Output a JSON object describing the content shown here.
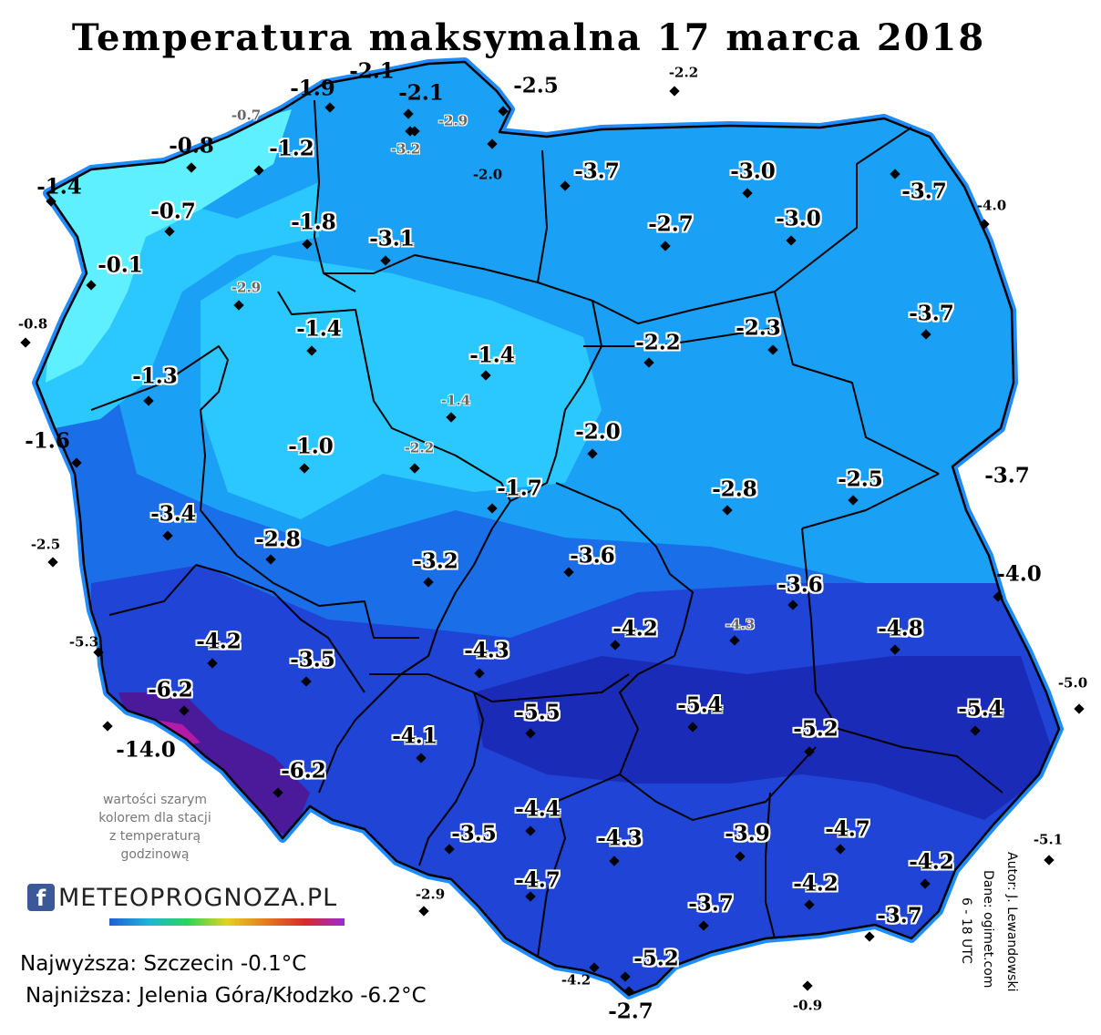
{
  "title": "Temperatura maksymalna 17 marca 2018",
  "note_lines": [
    "wartości szarym",
    "kolorem dla stacji",
    "z temperaturą",
    "godzinową"
  ],
  "logo": {
    "icon": "facebook-icon",
    "text": "METEOPROGNOZA.PL"
  },
  "stats": {
    "max": "Najwyższa: Szczecin -0.1°C",
    "min": "Najniższa: Jelenia Góra/Kłodzko -6.2°C"
  },
  "credits": {
    "author": "Autor: J. Lewandowski",
    "source": "Dane: ogimet.com",
    "hours": "6 - 18 UTC"
  },
  "colors": {
    "outline": "#000000",
    "border_glow": "#1f8cff",
    "warmest": "#5ef0ff",
    "warm": "#2bc8ff",
    "mild": "#1aa0f5",
    "cool": "#1a6fe8",
    "cold": "#1f44d6",
    "colder": "#1a2bb8",
    "coldest": "#4a1a9a",
    "extreme": "#b21aa8"
  },
  "stations": [
    {
      "value": "-2.1",
      "style": "big"
    },
    {
      "value": "-1.9",
      "style": "big"
    },
    {
      "value": "-2.1",
      "style": "big"
    },
    {
      "value": "-2.5",
      "style": "big"
    },
    {
      "value": "-2.2",
      "style": "small"
    },
    {
      "value": "-0.7",
      "style": "gray"
    },
    {
      "value": "-2.9",
      "style": "gray"
    },
    {
      "value": "-3.2",
      "style": "gray"
    },
    {
      "value": "-0.8",
      "style": "big"
    },
    {
      "value": "-1.2",
      "style": "halo"
    },
    {
      "value": "-2.0",
      "style": "small"
    },
    {
      "value": "-3.7",
      "style": "halo"
    },
    {
      "value": "-3.0",
      "style": "halo"
    },
    {
      "value": "-1.4",
      "style": "big"
    },
    {
      "value": "-3.7",
      "style": "halo"
    },
    {
      "value": "-4.0",
      "style": "small"
    },
    {
      "value": "-0.7",
      "style": "halo"
    },
    {
      "value": "-1.8",
      "style": "halo"
    },
    {
      "value": "-3.1",
      "style": "halo"
    },
    {
      "value": "-2.7",
      "style": "halo"
    },
    {
      "value": "-3.0",
      "style": "halo"
    },
    {
      "value": "-0.1",
      "style": "halo"
    },
    {
      "value": "-2.9",
      "style": "gray"
    },
    {
      "value": "-0.8",
      "style": "small"
    },
    {
      "value": "-1.4",
      "style": "halo"
    },
    {
      "value": "-1.4",
      "style": "halo"
    },
    {
      "value": "-2.2",
      "style": "halo"
    },
    {
      "value": "-2.3",
      "style": "halo"
    },
    {
      "value": "-3.7",
      "style": "halo"
    },
    {
      "value": "-1.3",
      "style": "halo"
    },
    {
      "value": "-1.4",
      "style": "gray"
    },
    {
      "value": "-1.6",
      "style": "big"
    },
    {
      "value": "-1.0",
      "style": "halo"
    },
    {
      "value": "-2.2",
      "style": "gray"
    },
    {
      "value": "-2.0",
      "style": "halo"
    },
    {
      "value": "-1.7",
      "style": "halo"
    },
    {
      "value": "-2.8",
      "style": "halo"
    },
    {
      "value": "-2.5",
      "style": "halo"
    },
    {
      "value": "-3.7",
      "style": "big"
    },
    {
      "value": "-3.4",
      "style": "halo"
    },
    {
      "value": "-2.5",
      "style": "small"
    },
    {
      "value": "-2.8",
      "style": "halo"
    },
    {
      "value": "-3.2",
      "style": "halo"
    },
    {
      "value": "-3.6",
      "style": "halo"
    },
    {
      "value": "-3.6",
      "style": "halo"
    },
    {
      "value": "-4.0",
      "style": "big"
    },
    {
      "value": "-5.3",
      "style": "small"
    },
    {
      "value": "-4.2",
      "style": "halo"
    },
    {
      "value": "-3.5",
      "style": "halo"
    },
    {
      "value": "-4.3",
      "style": "halo"
    },
    {
      "value": "-4.2",
      "style": "halo"
    },
    {
      "value": "-4.3",
      "style": "gray"
    },
    {
      "value": "-4.8",
      "style": "halo"
    },
    {
      "value": "-6.2",
      "style": "halo"
    },
    {
      "value": "-5.0",
      "style": "small"
    },
    {
      "value": "-5.5",
      "style": "halo"
    },
    {
      "value": "-5.4",
      "style": "halo"
    },
    {
      "value": "-5.2",
      "style": "halo"
    },
    {
      "value": "-5.4",
      "style": "halo"
    },
    {
      "value": "-14.0",
      "style": "big"
    },
    {
      "value": "-4.1",
      "style": "halo"
    },
    {
      "value": "-6.2",
      "style": "halo"
    },
    {
      "value": "-4.4",
      "style": "halo"
    },
    {
      "value": "-3.5",
      "style": "halo"
    },
    {
      "value": "-4.3",
      "style": "halo"
    },
    {
      "value": "-3.9",
      "style": "halo"
    },
    {
      "value": "-4.7",
      "style": "halo"
    },
    {
      "value": "-5.1",
      "style": "small"
    },
    {
      "value": "-4.2",
      "style": "halo"
    },
    {
      "value": "-2.9",
      "style": "small"
    },
    {
      "value": "-4.7",
      "style": "halo"
    },
    {
      "value": "-3.7",
      "style": "halo"
    },
    {
      "value": "-4.2",
      "style": "halo"
    },
    {
      "value": "-3.7",
      "style": "halo"
    },
    {
      "value": "-5.2",
      "style": "halo"
    },
    {
      "value": "-4.2",
      "style": "small"
    },
    {
      "value": "-0.9",
      "style": "small"
    },
    {
      "value": "-2.7",
      "style": "big"
    }
  ]
}
